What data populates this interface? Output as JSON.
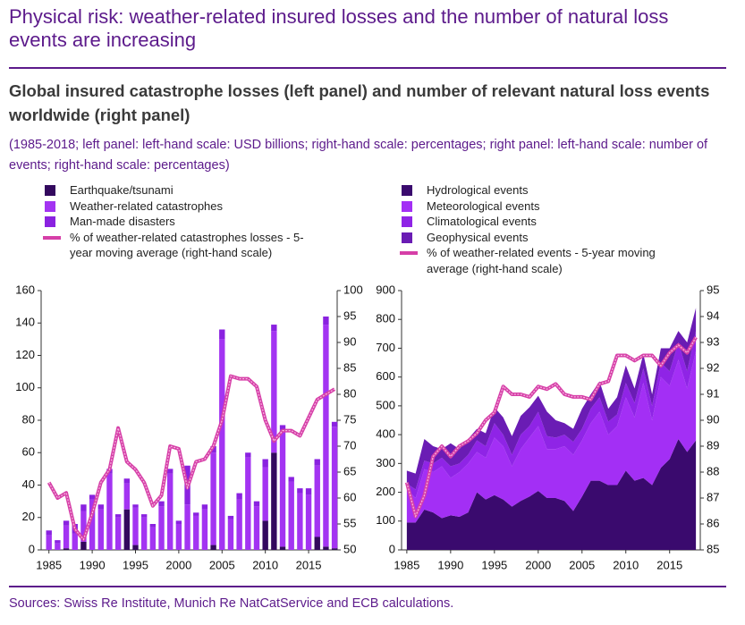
{
  "title": "Physical risk: weather-related insured losses and the number of natural loss events are increasing",
  "subtitle": "Global insured catastrophe losses (left panel) and number of relevant natural loss events worldwide (right panel)",
  "note": "(1985-2018; left panel: left-hand scale: USD billions; right-hand scale: percentages; right panel: left-hand scale: number of events; right-hand scale: percentages)",
  "source": "Sources: Swiss Re Institute, Munich Re NatCatService and ECB calculations.",
  "chart_data": [
    {
      "type": "bar",
      "stacked": true,
      "x": [
        1985,
        1986,
        1987,
        1988,
        1989,
        1990,
        1991,
        1992,
        1993,
        1994,
        1995,
        1996,
        1997,
        1998,
        1999,
        2000,
        2001,
        2002,
        2003,
        2004,
        2005,
        2006,
        2007,
        2008,
        2009,
        2010,
        2011,
        2012,
        2013,
        2014,
        2015,
        2016,
        2017,
        2018
      ],
      "xlim": [
        1984.1,
        2018.3
      ],
      "xticks": [
        1985,
        1990,
        1995,
        2000,
        2005,
        2010,
        2015
      ],
      "ylim": [
        0,
        160
      ],
      "yticks": [
        0,
        20,
        40,
        60,
        80,
        100,
        120,
        140,
        160
      ],
      "y2lim": [
        50,
        100
      ],
      "y2ticks": [
        50,
        55,
        60,
        65,
        70,
        75,
        80,
        85,
        90,
        95,
        100
      ],
      "series": [
        {
          "name": "Earthquake/tsunami",
          "color": "#33095e",
          "values": [
            0,
            0,
            1,
            0,
            5,
            0,
            0,
            0,
            0,
            25,
            3,
            0,
            0,
            0,
            0,
            0,
            0,
            0,
            0,
            3,
            0,
            0,
            0,
            0,
            0,
            18,
            60,
            2,
            0,
            0,
            0,
            8,
            2,
            1
          ]
        },
        {
          "name": "Weather-related catastrophes",
          "color": "#a334f2",
          "values": [
            9,
            4,
            14,
            10,
            19,
            31,
            25,
            47,
            20,
            16,
            23,
            20,
            14,
            27,
            47,
            16,
            28,
            21,
            25,
            57,
            130,
            19,
            31,
            57,
            27,
            33,
            75,
            72,
            42,
            35,
            34,
            44,
            137,
            75
          ]
        },
        {
          "name": "Man-made disasters",
          "color": "#8a22e0",
          "values": [
            3,
            2,
            3,
            6,
            4,
            3,
            3,
            3,
            2,
            3,
            2,
            2,
            2,
            3,
            3,
            2,
            24,
            2,
            3,
            4,
            6,
            2,
            4,
            3,
            3,
            5,
            4,
            3,
            3,
            3,
            4,
            4,
            5,
            3
          ]
        },
        {
          "name": "% of weather-related catastrophes losses - 5-year moving average (right-hand scale)",
          "type": "line",
          "axis": "y2",
          "color": "#d63fa8",
          "values": [
            63,
            60,
            61,
            54,
            52,
            57,
            63,
            65.5,
            73.5,
            67,
            65.5,
            63,
            58.5,
            60.5,
            70,
            69.5,
            62,
            67,
            67.5,
            70,
            75,
            83.5,
            83,
            83,
            81.5,
            75,
            71,
            73,
            73,
            72,
            75.5,
            79,
            80,
            81
          ]
        }
      ]
    },
    {
      "type": "area",
      "stacked": true,
      "x": [
        1985,
        1986,
        1987,
        1988,
        1989,
        1990,
        1991,
        1992,
        1993,
        1994,
        1995,
        1996,
        1997,
        1998,
        1999,
        2000,
        2001,
        2002,
        2003,
        2004,
        2005,
        2006,
        2007,
        2008,
        2009,
        2010,
        2011,
        2012,
        2013,
        2014,
        2015,
        2016,
        2017,
        2018
      ],
      "xlim": [
        1984.4,
        2018.5
      ],
      "xticks": [
        1985,
        1990,
        1995,
        2000,
        2005,
        2010,
        2015
      ],
      "ylim": [
        0,
        900
      ],
      "yticks": [
        0,
        100,
        200,
        300,
        400,
        500,
        600,
        700,
        800,
        900
      ],
      "y2lim": [
        85,
        95
      ],
      "y2ticks": [
        85,
        86,
        87,
        88,
        89,
        90,
        91,
        92,
        93,
        94,
        95
      ],
      "series": [
        {
          "name": "Hydrological events",
          "color": "#3a0a6e",
          "values": [
            95,
            95,
            140,
            130,
            110,
            120,
            115,
            130,
            200,
            175,
            190,
            175,
            150,
            170,
            185,
            205,
            180,
            180,
            170,
            135,
            185,
            240,
            240,
            225,
            225,
            275,
            240,
            250,
            225,
            285,
            315,
            385,
            340,
            380
          ]
        },
        {
          "name": "Meteorological events",
          "color": "#a32ff5",
          "values": [
            115,
            85,
            140,
            140,
            180,
            130,
            155,
            170,
            140,
            145,
            200,
            185,
            140,
            180,
            205,
            225,
            170,
            170,
            190,
            195,
            195,
            200,
            240,
            175,
            205,
            255,
            220,
            330,
            225,
            315,
            255,
            275,
            220,
            310
          ]
        },
        {
          "name": "Climatological events",
          "color": "#8f24e6",
          "values": [
            20,
            30,
            30,
            30,
            30,
            40,
            30,
            30,
            40,
            40,
            50,
            40,
            40,
            50,
            40,
            50,
            45,
            40,
            40,
            45,
            40,
            50,
            50,
            45,
            40,
            50,
            50,
            50,
            50,
            50,
            50,
            60,
            60,
            70
          ]
        },
        {
          "name": "Geophysical events",
          "color": "#6a1cb4",
          "values": [
            45,
            55,
            75,
            60,
            30,
            80,
            50,
            55,
            40,
            45,
            55,
            60,
            65,
            65,
            65,
            55,
            85,
            60,
            40,
            45,
            70,
            50,
            55,
            45,
            60,
            60,
            50,
            50,
            40,
            50,
            80,
            40,
            100,
            80
          ]
        },
        {
          "name": "% of weather-related events - 5-year moving average (right-hand scale)",
          "type": "line",
          "axis": "y2",
          "color": "#d63fa8",
          "values": [
            87.6,
            86.3,
            87.1,
            88.6,
            89.0,
            88.6,
            89.0,
            89.2,
            89.5,
            90.0,
            90.3,
            91.3,
            91.0,
            91.0,
            90.9,
            91.3,
            91.2,
            91.4,
            91.0,
            90.9,
            90.9,
            90.8,
            91.4,
            91.5,
            92.5,
            92.5,
            92.3,
            92.5,
            92.5,
            92.1,
            92.6,
            92.9,
            92.6,
            93.2
          ]
        }
      ]
    }
  ]
}
